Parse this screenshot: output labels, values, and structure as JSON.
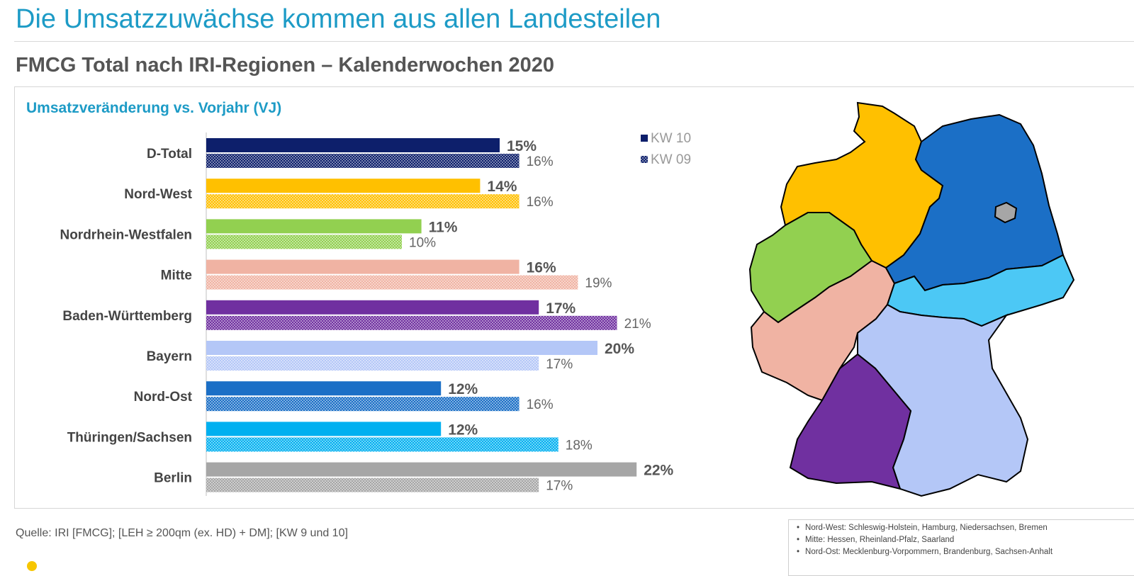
{
  "header": {
    "title": "Die Umsatzzuwächse kommen aus allen Landesteilen",
    "subtitle": "FMCG Total nach IRI-Regionen – Kalenderwochen 2020"
  },
  "chart_data": {
    "type": "bar",
    "orientation": "horizontal",
    "title": "Umsatzveränderung vs. Vorjahr (VJ)",
    "categories": [
      "D-Total",
      "Nord-West",
      "Nordrhein-Westfalen",
      "Mitte",
      "Baden-Württemberg",
      "Bayern",
      "Nord-Ost",
      "Thüringen/Sachsen",
      "Berlin"
    ],
    "series": [
      {
        "name": "KW 10",
        "values": [
          15,
          14,
          11,
          16,
          17,
          20,
          12,
          12,
          22
        ],
        "labels": [
          "15%",
          "14%",
          "11%",
          "16%",
          "17%",
          "20%",
          "12%",
          "12%",
          "22%"
        ]
      },
      {
        "name": "KW 09",
        "values": [
          16,
          16,
          10,
          19,
          21,
          17,
          16,
          18,
          17
        ],
        "labels": [
          "16%",
          "16%",
          "10%",
          "19%",
          "21%",
          "17%",
          "16%",
          "18%",
          "17%"
        ]
      }
    ],
    "category_colors": [
      "#0d1f6b",
      "#ffc000",
      "#92d050",
      "#f0b3a3",
      "#7030a0",
      "#b4c7f7",
      "#1b6fc6",
      "#00b0f0",
      "#a6a6a6"
    ],
    "legend_position": "top-right",
    "grid": false
  },
  "map": {
    "colors": {
      "nord_west": "#ffc000",
      "nrw": "#92d050",
      "mitte": "#f0b3a3",
      "bw": "#7030a0",
      "bayern": "#b4c7f7",
      "nord_ost": "#1b6fc6",
      "thueringen_sachsen": "#4cc8f5",
      "berlin": "#a6a6a6"
    }
  },
  "footer": {
    "source": "Quelle: IRI [FMCG]; [LEH ≥ 200qm (ex. HD) + DM]; [KW 9 und 10]",
    "notes": [
      "Nord-West: Schleswig-Holstein, Hamburg, Niedersachsen, Bremen",
      "Mitte: Hessen, Rheinland-Pfalz, Saarland",
      "Nord-Ost: Mecklenburg-Vorpommern, Brandenburg, Sachsen-Anhalt"
    ]
  }
}
